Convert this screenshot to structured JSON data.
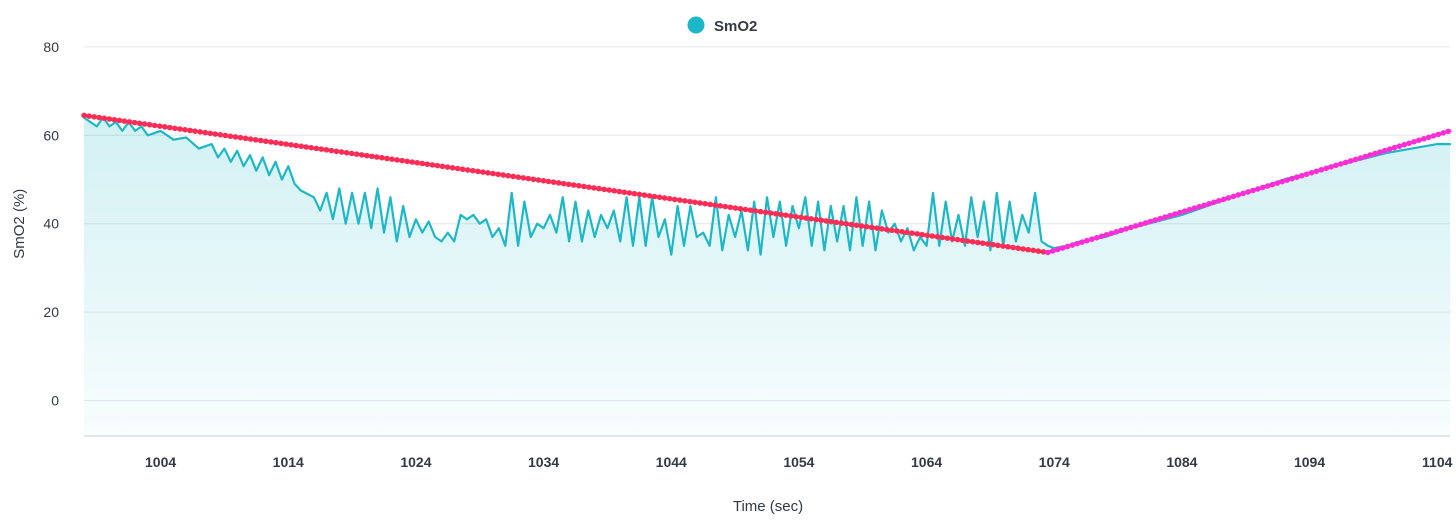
{
  "chart_data": {
    "type": "line",
    "title": "",
    "xlabel": "Time (sec)",
    "ylabel": "SmO2 (%)",
    "xlim": [
      998,
      1105
    ],
    "ylim": [
      -8,
      82
    ],
    "x_ticks": [
      1004,
      1014,
      1024,
      1034,
      1044,
      1054,
      1064,
      1074,
      1084,
      1094,
      1104
    ],
    "y_ticks": [
      0,
      20,
      40,
      60,
      80
    ],
    "grid": true,
    "legend_position": "top-center",
    "legend": [
      {
        "label": "SmO2",
        "color": "#1db8c7"
      }
    ],
    "series": [
      {
        "name": "SmO2",
        "color": "#1db8c7",
        "fill": "area",
        "points": [
          [
            998,
            64
          ],
          [
            999,
            62
          ],
          [
            999.5,
            64
          ],
          [
            1000,
            62
          ],
          [
            1000.5,
            63
          ],
          [
            1001,
            61
          ],
          [
            1001.5,
            63
          ],
          [
            1002,
            61
          ],
          [
            1002.5,
            62
          ],
          [
            1003,
            60
          ],
          [
            1004,
            61
          ],
          [
            1005,
            59
          ],
          [
            1006,
            59.5
          ],
          [
            1007,
            57
          ],
          [
            1008,
            58
          ],
          [
            1008.5,
            55
          ],
          [
            1009,
            57
          ],
          [
            1009.5,
            54
          ],
          [
            1010,
            56.5
          ],
          [
            1010.5,
            53
          ],
          [
            1011,
            55.5
          ],
          [
            1011.5,
            52
          ],
          [
            1012,
            55
          ],
          [
            1012.5,
            51
          ],
          [
            1013,
            54
          ],
          [
            1013.5,
            50
          ],
          [
            1014,
            53
          ],
          [
            1014.5,
            49
          ],
          [
            1015,
            47.5
          ],
          [
            1016,
            46
          ],
          [
            1016.5,
            43
          ],
          [
            1017,
            47
          ],
          [
            1017.5,
            41
          ],
          [
            1018,
            48
          ],
          [
            1018.5,
            40
          ],
          [
            1019,
            47
          ],
          [
            1019.5,
            40
          ],
          [
            1020,
            47
          ],
          [
            1020.5,
            39
          ],
          [
            1021,
            48
          ],
          [
            1021.5,
            38
          ],
          [
            1022,
            46
          ],
          [
            1022.5,
            36
          ],
          [
            1023,
            44
          ],
          [
            1023.5,
            37
          ],
          [
            1024,
            41
          ],
          [
            1024.5,
            38
          ],
          [
            1025,
            40.5
          ],
          [
            1025.5,
            37
          ],
          [
            1026,
            36
          ],
          [
            1026.5,
            38
          ],
          [
            1027,
            36
          ],
          [
            1027.5,
            42
          ],
          [
            1028,
            41
          ],
          [
            1028.5,
            42
          ],
          [
            1029,
            40
          ],
          [
            1029.5,
            41
          ],
          [
            1030,
            37
          ],
          [
            1030.5,
            39
          ],
          [
            1031,
            35
          ],
          [
            1031.5,
            47
          ],
          [
            1032,
            35
          ],
          [
            1032.5,
            45
          ],
          [
            1033,
            37
          ],
          [
            1033.5,
            40
          ],
          [
            1034,
            39
          ],
          [
            1034.5,
            42
          ],
          [
            1035,
            38
          ],
          [
            1035.5,
            46
          ],
          [
            1036,
            36
          ],
          [
            1036.5,
            45
          ],
          [
            1037,
            36
          ],
          [
            1037.5,
            43
          ],
          [
            1038,
            37
          ],
          [
            1038.5,
            42
          ],
          [
            1039,
            39
          ],
          [
            1039.5,
            43
          ],
          [
            1040,
            36
          ],
          [
            1040.5,
            46
          ],
          [
            1041,
            35
          ],
          [
            1041.5,
            46
          ],
          [
            1042,
            35
          ],
          [
            1042.5,
            46
          ],
          [
            1043,
            37
          ],
          [
            1043.5,
            41
          ],
          [
            1044,
            33
          ],
          [
            1044.5,
            44
          ],
          [
            1045,
            35
          ],
          [
            1045.5,
            44
          ],
          [
            1046,
            37
          ],
          [
            1046.5,
            38
          ],
          [
            1047,
            35
          ],
          [
            1047.5,
            46
          ],
          [
            1048,
            34
          ],
          [
            1048.5,
            42
          ],
          [
            1049,
            37
          ],
          [
            1049.5,
            43
          ],
          [
            1050,
            34
          ],
          [
            1050.5,
            45
          ],
          [
            1051,
            33
          ],
          [
            1051.5,
            46
          ],
          [
            1052,
            37
          ],
          [
            1052.5,
            45
          ],
          [
            1053,
            35
          ],
          [
            1053.5,
            44
          ],
          [
            1054,
            39
          ],
          [
            1054.5,
            46
          ],
          [
            1055,
            35
          ],
          [
            1055.5,
            45
          ],
          [
            1056,
            34
          ],
          [
            1056.5,
            44
          ],
          [
            1057,
            36
          ],
          [
            1057.5,
            44
          ],
          [
            1058,
            34
          ],
          [
            1058.5,
            46
          ],
          [
            1059,
            35
          ],
          [
            1059.5,
            45
          ],
          [
            1060,
            34
          ],
          [
            1060.5,
            43
          ],
          [
            1061,
            38
          ],
          [
            1061.5,
            40
          ],
          [
            1062,
            36
          ],
          [
            1062.5,
            39
          ],
          [
            1063,
            34
          ],
          [
            1063.5,
            37
          ],
          [
            1064,
            35
          ],
          [
            1064.5,
            47
          ],
          [
            1065,
            35
          ],
          [
            1065.5,
            45
          ],
          [
            1066,
            36
          ],
          [
            1066.5,
            42
          ],
          [
            1067,
            35
          ],
          [
            1067.5,
            46
          ],
          [
            1068,
            37
          ],
          [
            1068.5,
            45
          ],
          [
            1069,
            34
          ],
          [
            1069.5,
            47
          ],
          [
            1070,
            35
          ],
          [
            1070.5,
            45
          ],
          [
            1071,
            36
          ],
          [
            1071.5,
            42
          ],
          [
            1072,
            38
          ],
          [
            1072.5,
            47
          ],
          [
            1073,
            36
          ],
          [
            1073.5,
            35
          ],
          [
            1074,
            34.5
          ],
          [
            1075,
            35
          ],
          [
            1076,
            36
          ],
          [
            1078,
            37
          ],
          [
            1080,
            39
          ],
          [
            1082,
            40.5
          ],
          [
            1084,
            42
          ],
          [
            1086,
            44
          ],
          [
            1088,
            46
          ],
          [
            1090,
            48
          ],
          [
            1092,
            50
          ],
          [
            1094,
            51.5
          ],
          [
            1096,
            53
          ],
          [
            1098,
            54.5
          ],
          [
            1100,
            56
          ],
          [
            1102,
            57
          ],
          [
            1104,
            58
          ],
          [
            1105,
            58
          ]
        ]
      },
      {
        "color": "#ff2d55",
        "style": "dotted",
        "points": [
          [
            998,
            64.5
          ],
          [
            1073.5,
            33.5
          ]
        ]
      },
      {
        "color": "#ff2dd6",
        "style": "dotted",
        "points": [
          [
            1073.5,
            33.5
          ],
          [
            1105,
            61
          ]
        ]
      }
    ]
  }
}
